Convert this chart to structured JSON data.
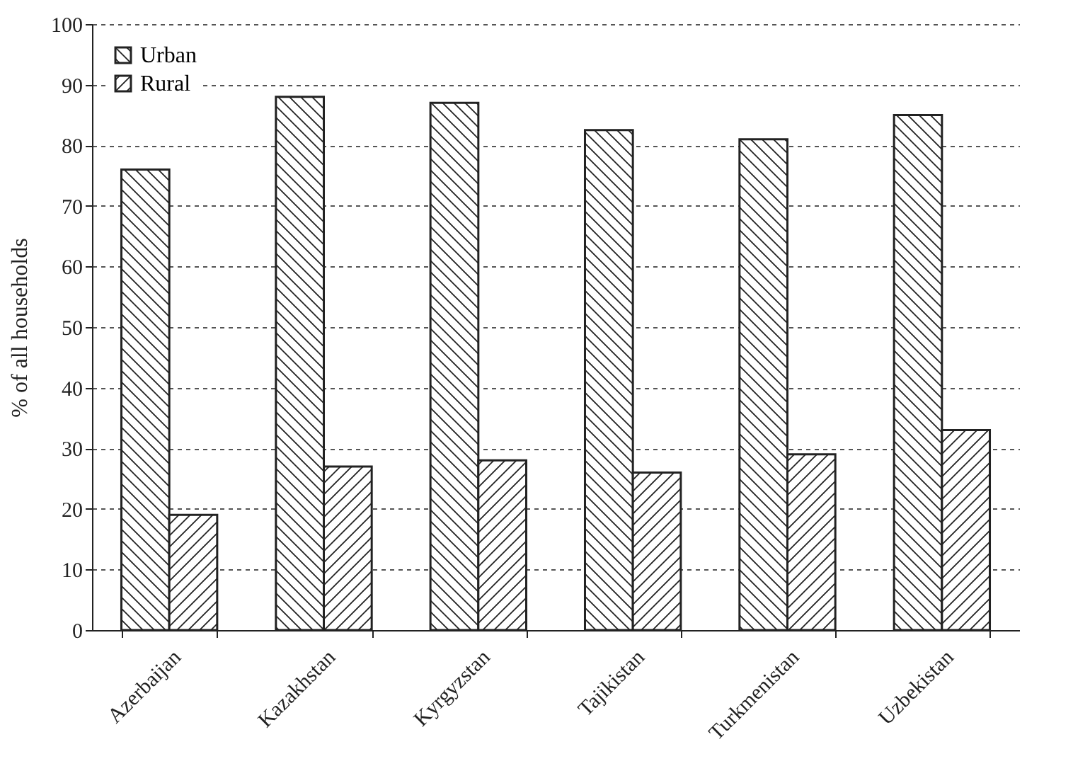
{
  "chart_data": {
    "type": "bar",
    "ylabel": "% of all households",
    "categories": [
      "Azerbaijan",
      "Kazakhstan",
      "Kyrgyzstan",
      "Tajikistan",
      "Turkmenistan",
      "Uzbekistan"
    ],
    "series": [
      {
        "name": "Urban",
        "color": "#222222",
        "values": [
          76,
          88,
          87,
          82.5,
          81,
          85
        ]
      },
      {
        "name": "Rural",
        "color": "#222222",
        "values": [
          19,
          27,
          28,
          26,
          29,
          33
        ]
      }
    ],
    "ylim": [
      0,
      100
    ],
    "yticks": [
      0,
      10,
      20,
      30,
      40,
      50,
      60,
      70,
      80,
      90,
      100
    ],
    "grid": "y",
    "legend": "top left"
  }
}
